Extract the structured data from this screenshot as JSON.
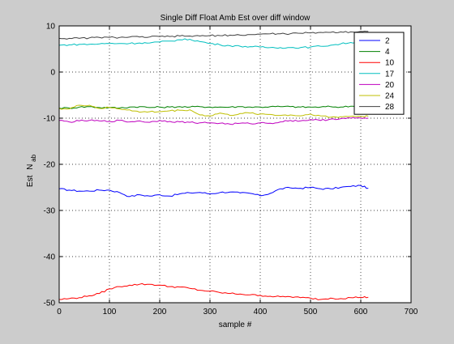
{
  "chart_data": {
    "type": "line",
    "title": "Single Diff Float Amb Est over diff window",
    "xlabel": "sample #",
    "ylabel_main": "Est",
    "ylabel_sub": "ab",
    "ylabel_mid": "N",
    "xlim": [
      0,
      700
    ],
    "ylim": [
      -50,
      10
    ],
    "xticks": [
      "0",
      "100",
      "200",
      "300",
      "400",
      "500",
      "600",
      "700"
    ],
    "yticks": [
      "10",
      "0",
      "-10",
      "-20",
      "-30",
      "-40",
      "-50"
    ],
    "grid": true,
    "legend_position": "top-right",
    "x": [
      0,
      20,
      40,
      60,
      80,
      100,
      120,
      140,
      160,
      180,
      200,
      220,
      240,
      260,
      280,
      300,
      320,
      340,
      360,
      380,
      400,
      420,
      440,
      460,
      480,
      500,
      520,
      540,
      560,
      580,
      600,
      615
    ],
    "series": [
      {
        "name": "2",
        "color": "#0000ff",
        "values": [
          -25.3,
          -25.6,
          -25.8,
          -25.8,
          -25.6,
          -25.6,
          -26.1,
          -27.0,
          -26.6,
          -26.9,
          -26.6,
          -26.9,
          -26.4,
          -26.2,
          -26.1,
          -26.4,
          -26.1,
          -26.0,
          -26.2,
          -26.3,
          -26.8,
          -26.3,
          -25.3,
          -25.1,
          -25.2,
          -25.0,
          -25.3,
          -25.3,
          -25.0,
          -24.8,
          -24.6,
          -25.2
        ]
      },
      {
        "name": "4",
        "color": "#008000",
        "values": [
          -7.8,
          -7.8,
          -7.6,
          -7.5,
          -7.7,
          -7.7,
          -7.8,
          -7.6,
          -7.5,
          -7.7,
          -7.6,
          -7.6,
          -7.5,
          -7.6,
          -7.5,
          -7.6,
          -7.6,
          -7.6,
          -7.5,
          -7.6,
          -7.6,
          -7.5,
          -7.5,
          -7.5,
          -7.6,
          -7.6,
          -7.6,
          -7.5,
          -7.6,
          -7.4,
          -7.5,
          -7.5
        ]
      },
      {
        "name": "10",
        "color": "#ff0000",
        "values": [
          -49.3,
          -49.1,
          -48.9,
          -48.5,
          -48.0,
          -47.0,
          -46.5,
          -46.2,
          -46.0,
          -46.0,
          -46.2,
          -46.5,
          -46.6,
          -46.9,
          -47.3,
          -47.5,
          -47.8,
          -48.0,
          -48.1,
          -48.3,
          -48.4,
          -48.6,
          -48.7,
          -48.7,
          -48.9,
          -49.0,
          -49.3,
          -49.0,
          -49.1,
          -48.9,
          -48.8,
          -48.8
        ]
      },
      {
        "name": "17",
        "color": "#00bfbf",
        "values": [
          5.8,
          5.9,
          6.0,
          6.0,
          6.1,
          6.2,
          6.2,
          6.2,
          6.3,
          6.3,
          6.5,
          6.7,
          7.0,
          7.1,
          6.6,
          6.2,
          5.9,
          5.7,
          5.6,
          5.5,
          5.4,
          5.3,
          5.3,
          5.3,
          5.3,
          5.4,
          5.6,
          5.8,
          6.1,
          6.4,
          6.5,
          6.5
        ]
      },
      {
        "name": "20",
        "color": "#bf00bf",
        "values": [
          -10.5,
          -10.8,
          -10.6,
          -10.5,
          -10.6,
          -10.7,
          -10.5,
          -10.8,
          -10.6,
          -10.9,
          -10.5,
          -10.7,
          -10.8,
          -10.9,
          -11.0,
          -11.0,
          -11.1,
          -11.3,
          -11.1,
          -11.2,
          -11.0,
          -11.1,
          -10.8,
          -10.5,
          -10.6,
          -10.3,
          -10.5,
          -10.2,
          -10.1,
          -10.0,
          -10.0,
          -10.0
        ]
      },
      {
        "name": "24",
        "color": "#bfbf00",
        "values": [
          -7.9,
          -8.0,
          -7.2,
          -7.2,
          -7.9,
          -7.7,
          -8.0,
          -8.2,
          -8.7,
          -8.6,
          -8.6,
          -8.4,
          -8.3,
          -8.2,
          -9.3,
          -9.5,
          -8.9,
          -9.4,
          -9.0,
          -8.9,
          -9.1,
          -9.2,
          -9.4,
          -9.3,
          -9.5,
          -9.1,
          -9.5,
          -9.8,
          -9.7,
          -9.6,
          -9.6,
          -9.6
        ]
      },
      {
        "name": "28",
        "color": "#404040",
        "values": [
          7.3,
          7.3,
          7.3,
          7.4,
          7.5,
          7.5,
          7.5,
          7.6,
          7.6,
          7.6,
          7.7,
          7.7,
          7.8,
          7.8,
          7.8,
          7.9,
          7.9,
          8.0,
          8.0,
          8.1,
          8.2,
          8.3,
          8.3,
          8.3,
          8.4,
          8.5,
          8.6,
          8.6,
          8.7,
          8.7,
          8.8,
          8.8
        ]
      }
    ]
  }
}
